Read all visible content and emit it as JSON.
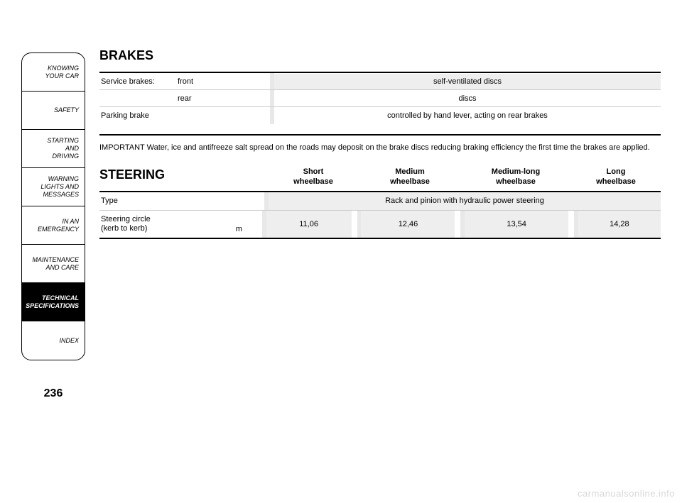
{
  "page_number": "236",
  "watermark": "carmanualsonline.info",
  "sidebar": {
    "tabs": [
      {
        "label": "KNOWING\nYOUR CAR",
        "active": false
      },
      {
        "label": "SAFETY",
        "active": false
      },
      {
        "label": "STARTING\nAND\nDRIVING",
        "active": false
      },
      {
        "label": "WARNING\nLIGHTS AND\nMESSAGES",
        "active": false
      },
      {
        "label": "IN AN\nEMERGENCY",
        "active": false
      },
      {
        "label": "MAINTENANCE\nAND CARE",
        "active": false
      },
      {
        "label": "TECHNICAL\nSPECIFICATIONS",
        "active": true
      },
      {
        "label": "INDEX",
        "active": false
      }
    ]
  },
  "brakes": {
    "title": "BRAKES",
    "rows": [
      {
        "col1": "Service brakes:",
        "col2": "front",
        "value": "self-ventilated discs",
        "shaded": true
      },
      {
        "col1": "",
        "col2": "rear",
        "value": "discs",
        "shaded": false
      },
      {
        "col1": "Parking brake",
        "col2": "",
        "value": "controlled by hand lever, acting on rear brakes",
        "shaded": false
      }
    ],
    "note": "IMPORTANT Water, ice and antifreeze salt spread on the roads may deposit on the brake discs reducing braking efficiency the first time the brakes are applied."
  },
  "steering": {
    "title": "STEERING",
    "headers": [
      "Short\nwheelbase",
      "Medium\nwheelbase",
      "Medium-long\nwheelbase",
      "Long\nwheelbase"
    ],
    "type_row": {
      "label": "Type",
      "value": "Rack and pinion with hydraulic power steering"
    },
    "circle_row": {
      "label": "Steering circle\n(kerb to kerb)",
      "unit": "m",
      "values": [
        "11,06",
        "12,46",
        "13,54",
        "14,28"
      ]
    }
  },
  "colors": {
    "grey_bg": "#eeeeee",
    "sep": "#e8e8e8",
    "rule": "#000000",
    "light_rule": "#cccccc",
    "watermark": "#d8d8d8"
  }
}
